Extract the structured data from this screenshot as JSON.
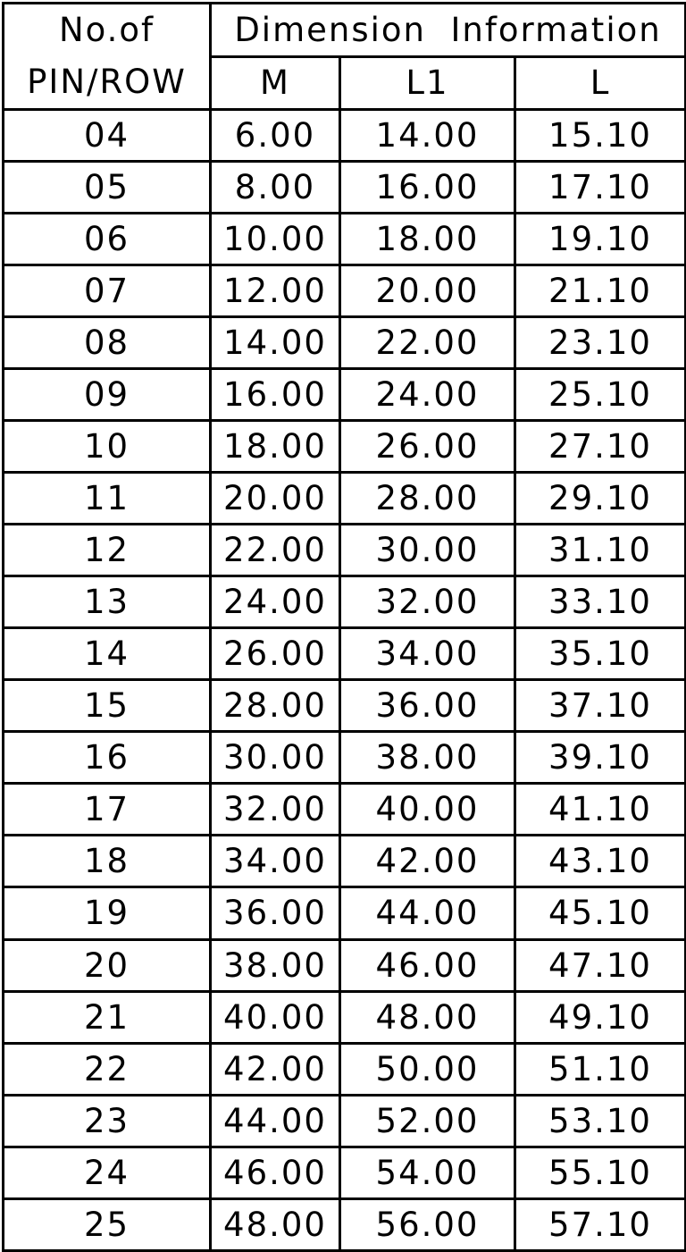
{
  "header": {
    "pin_label_line1": "No.of",
    "pin_label_line2": "PIN/ROW",
    "group_label": "Dimension  Information",
    "columns": [
      "M",
      "L1",
      "L"
    ]
  },
  "rows": [
    [
      "04",
      "6.00",
      "14.00",
      "15.10"
    ],
    [
      "05",
      "8.00",
      "16.00",
      "17.10"
    ],
    [
      "06",
      "10.00",
      "18.00",
      "19.10"
    ],
    [
      "07",
      "12.00",
      "20.00",
      "21.10"
    ],
    [
      "08",
      "14.00",
      "22.00",
      "23.10"
    ],
    [
      "09",
      "16.00",
      "24.00",
      "25.10"
    ],
    [
      "10",
      "18.00",
      "26.00",
      "27.10"
    ],
    [
      "11",
      "20.00",
      "28.00",
      "29.10"
    ],
    [
      "12",
      "22.00",
      "30.00",
      "31.10"
    ],
    [
      "13",
      "24.00",
      "32.00",
      "33.10"
    ],
    [
      "14",
      "26.00",
      "34.00",
      "35.10"
    ],
    [
      "15",
      "28.00",
      "36.00",
      "37.10"
    ],
    [
      "16",
      "30.00",
      "38.00",
      "39.10"
    ],
    [
      "17",
      "32.00",
      "40.00",
      "41.10"
    ],
    [
      "18",
      "34.00",
      "42.00",
      "43.10"
    ],
    [
      "19",
      "36.00",
      "44.00",
      "45.10"
    ],
    [
      "20",
      "38.00",
      "46.00",
      "47.10"
    ],
    [
      "21",
      "40.00",
      "48.00",
      "49.10"
    ],
    [
      "22",
      "42.00",
      "50.00",
      "51.10"
    ],
    [
      "23",
      "44.00",
      "52.00",
      "53.10"
    ],
    [
      "24",
      "46.00",
      "54.00",
      "55.10"
    ],
    [
      "25",
      "48.00",
      "56.00",
      "57.10"
    ]
  ]
}
